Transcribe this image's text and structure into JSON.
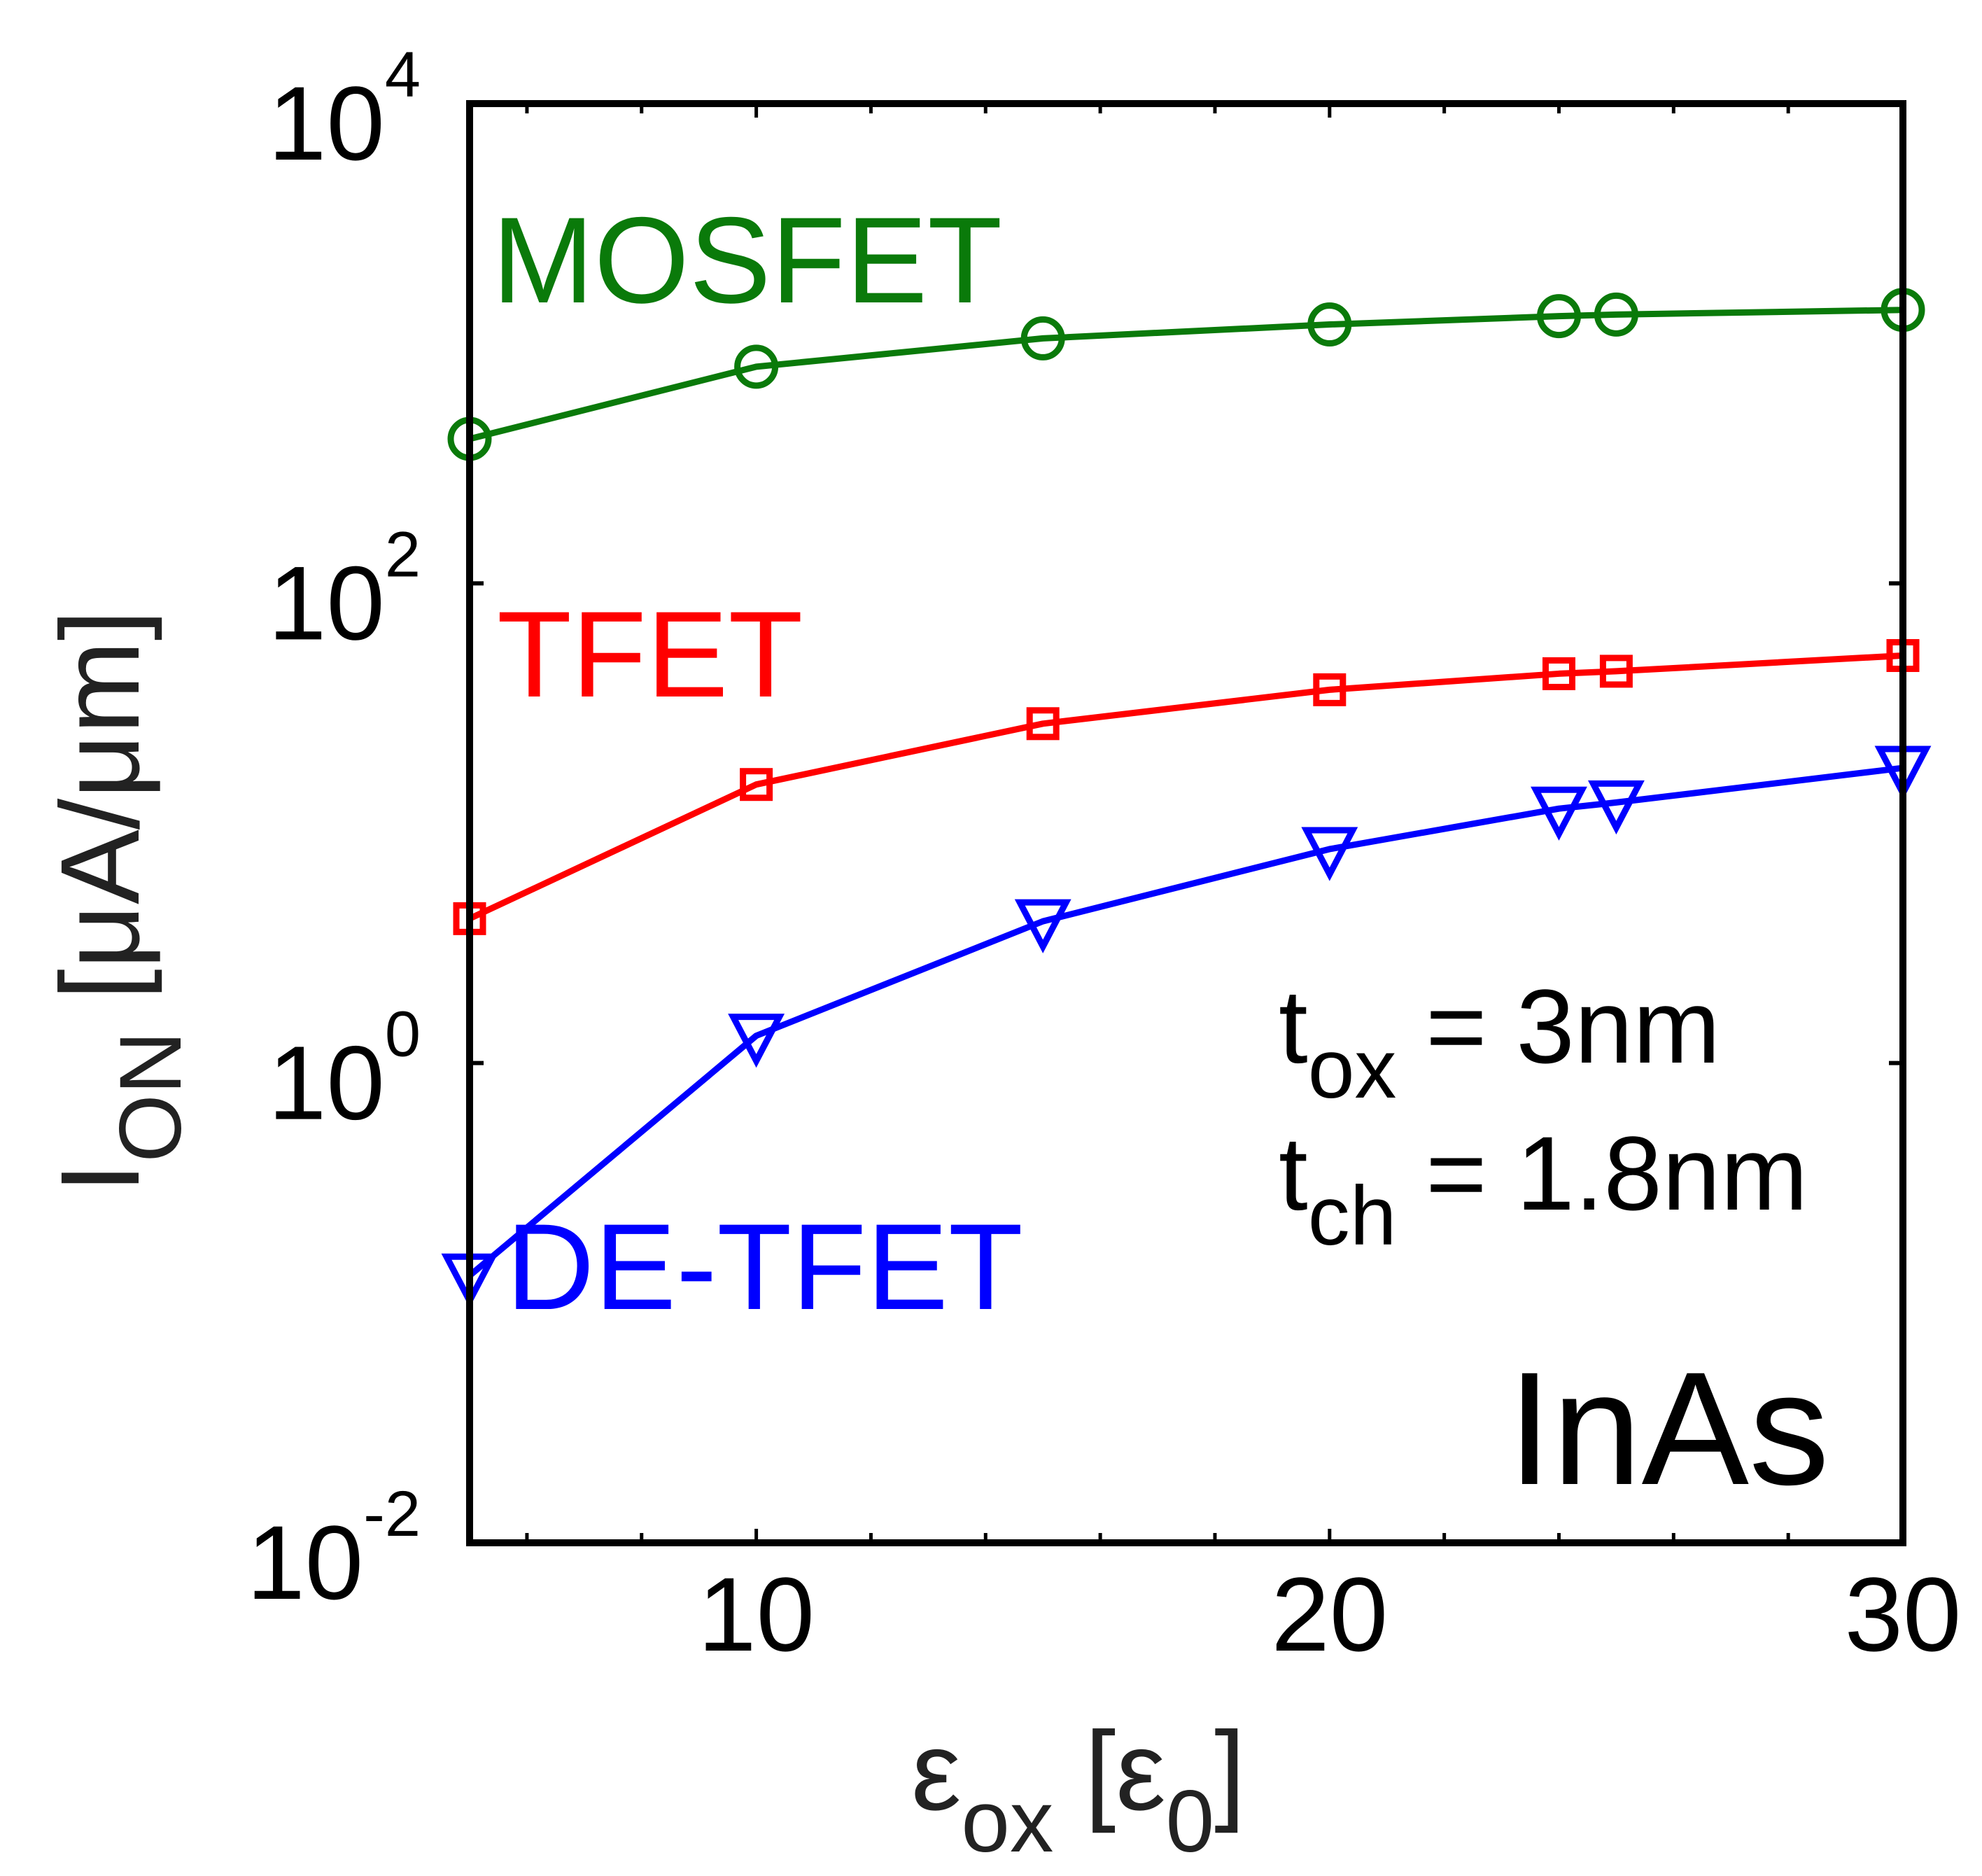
{
  "chart_data": {
    "type": "line",
    "x": [
      5,
      10,
      15,
      20,
      24,
      25,
      30
    ],
    "xlim": [
      5,
      30
    ],
    "ylim": [
      0.01,
      10000
    ],
    "yscale": "log",
    "x_ticks": [
      10,
      20,
      30
    ],
    "x_tick_labels": [
      "10",
      "20",
      "30"
    ],
    "y_ticks": [
      0.01,
      1,
      100,
      10000
    ],
    "y_tick_labels": [
      {
        "base": "10",
        "exp": "-2"
      },
      {
        "base": "10",
        "exp": "0"
      },
      {
        "base": "10",
        "exp": "2"
      },
      {
        "base": "10",
        "exp": "4"
      }
    ],
    "xlabel": {
      "main": "ε",
      "sub": "ox",
      "bracket_open": " [",
      "unit": "ε",
      "unit_sub": "0",
      "bracket_close": "]"
    },
    "ylabel": {
      "main": "I",
      "sub": "ON",
      "unit": " [μA/μm]"
    },
    "series": [
      {
        "name": "MOSFET",
        "color": "#0a7a0a",
        "marker": "circle",
        "values": [
          400,
          800,
          1050,
          1200,
          1300,
          1320,
          1380
        ]
      },
      {
        "name": "TFET",
        "color": "#ff0000",
        "marker": "square",
        "values": [
          4,
          14.5,
          26,
          36,
          42,
          43,
          50
        ]
      },
      {
        "name": "DE-TFET",
        "color": "#0000ff",
        "marker": "triangle-down",
        "values": [
          0.13,
          1.3,
          3.9,
          7.8,
          11.5,
          12.2,
          17
        ]
      }
    ],
    "annotations": {
      "tox": {
        "main": "t",
        "sub": "ox",
        "rest": " = 3nm"
      },
      "tch": {
        "main": "t",
        "sub": "ch",
        "rest": " = 1.8nm"
      },
      "material": "InAs"
    }
  }
}
